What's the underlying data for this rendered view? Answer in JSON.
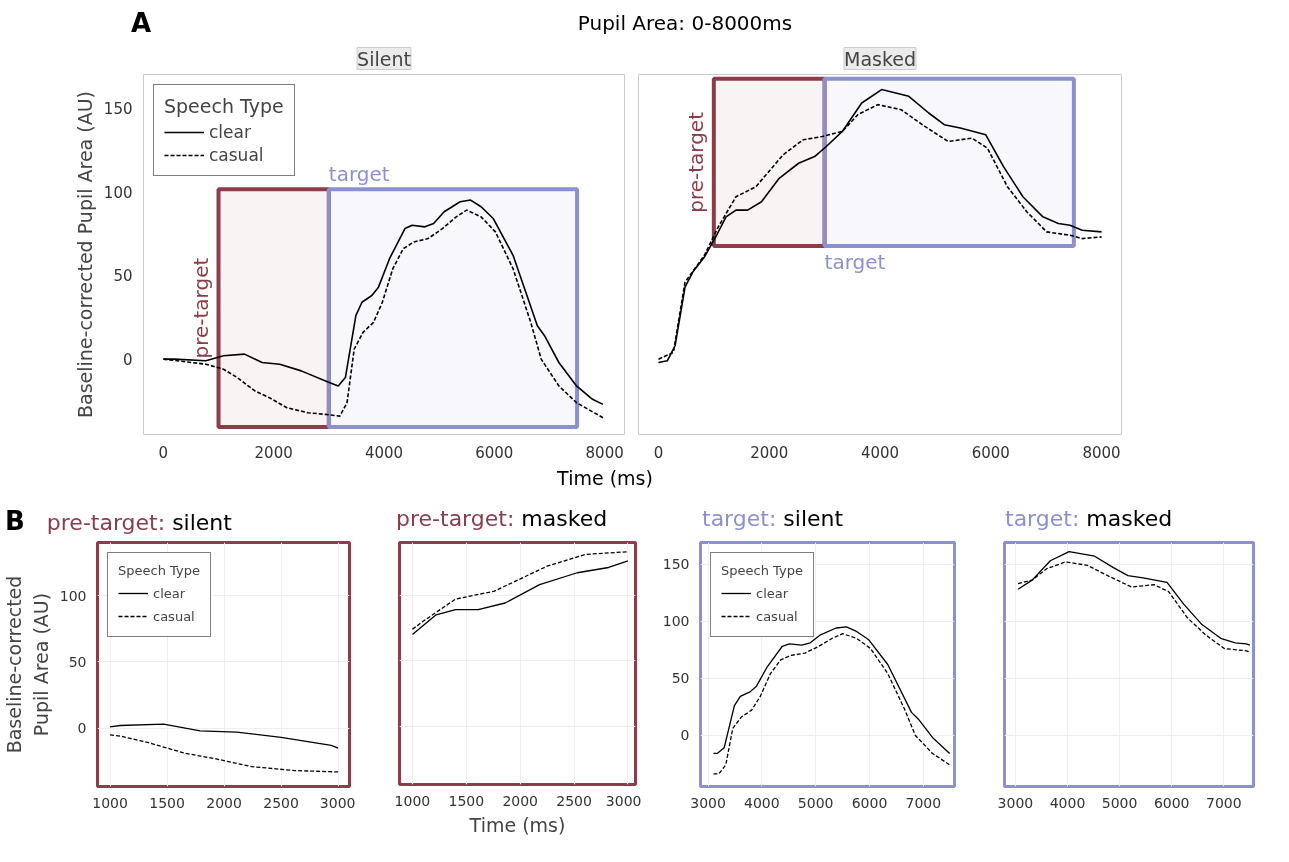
{
  "chart_data": [
    {
      "type": "line",
      "title": "Silent",
      "annotations": [
        "A",
        "Pupil Area: 0-8000ms"
      ],
      "xlabel": "Time (ms)",
      "ylabel": "Baseline-corrected Pupil Area (AU)",
      "legend_title": "Speech Type",
      "legend": "top left",
      "grid": false,
      "xlim": [
        -360,
        8360
      ],
      "ylim": [
        -45,
        170
      ],
      "xticks": [
        0,
        2000,
        4000,
        6000,
        8000
      ],
      "yticks": [
        0,
        50,
        100,
        150
      ],
      "bands": [
        {
          "axis": "x",
          "from": 1000,
          "to": 3000,
          "label": "pre-target",
          "color": "#8b3d4a"
        },
        {
          "axis": "x",
          "from": 3000,
          "to": 7500,
          "label": "target",
          "color": "#8b90cf"
        }
      ],
      "series": [
        {
          "name": "clear",
          "color": "#000000",
          "line_style": "solid",
          "x": [
            0,
            200,
            770,
            1090,
            1470,
            1790,
            2110,
            2500,
            2940,
            3170,
            3300,
            3490,
            3600,
            3780,
            3900,
            4100,
            4380,
            4510,
            4740,
            4900,
            5090,
            5380,
            5570,
            5760,
            5980,
            6340,
            6780,
            6910,
            7170,
            7490,
            7780,
            7970
          ],
          "values": [
            0,
            0,
            -1,
            2,
            3,
            -2,
            -3,
            -7,
            -13,
            -16,
            -11,
            26,
            34,
            38,
            43,
            60,
            78,
            80,
            79,
            81,
            88,
            94,
            95,
            91,
            84,
            62,
            20,
            14,
            -2,
            -16,
            -24,
            -27
          ]
        },
        {
          "name": "casual",
          "color": "#000000",
          "line_style": "dashed",
          "x": [
            0,
            770,
            1090,
            1340,
            1660,
            1920,
            2240,
            2620,
            2940,
            3200,
            3330,
            3460,
            3620,
            3810,
            3970,
            4160,
            4350,
            4540,
            4800,
            5060,
            5310,
            5500,
            5760,
            6020,
            6340,
            6660,
            6850,
            7170,
            7490,
            7970
          ],
          "values": [
            0,
            -3,
            -6,
            -11,
            -19,
            -23,
            -29,
            -32,
            -33,
            -34,
            -26,
            6,
            16,
            22,
            34,
            54,
            66,
            70,
            72,
            78,
            85,
            89,
            85,
            76,
            54,
            22,
            0,
            -16,
            -26,
            -35
          ]
        }
      ]
    },
    {
      "type": "line",
      "title": "Masked",
      "tick_labels": "x",
      "grid": false,
      "xlim": [
        -360,
        8360
      ],
      "ylim": [
        -45,
        170
      ],
      "xticks": [
        0,
        2000,
        4000,
        6000,
        8000
      ],
      "yticks": [
        0,
        50,
        100,
        150
      ],
      "bands": [
        {
          "axis": "x",
          "from": 1000,
          "to": 3000,
          "label": "pre-target",
          "color": "#8b3d4a"
        },
        {
          "axis": "x",
          "from": 3000,
          "to": 7500,
          "label": "target",
          "color": "#8b90cf"
        }
      ],
      "series": [
        {
          "color": "#000000",
          "line_style": "solid",
          "x": [
            0,
            160,
            300,
            480,
            620,
            830,
            1050,
            1220,
            1400,
            1610,
            1860,
            2180,
            2530,
            2820,
            3030,
            3320,
            3670,
            4030,
            4520,
            4880,
            5160,
            5450,
            5910,
            6230,
            6580,
            6940,
            7220,
            7430,
            7650,
            8000
          ],
          "values": [
            -2,
            -1,
            8,
            43,
            52,
            61,
            74,
            85,
            89,
            89,
            94,
            108,
            117,
            121,
            127,
            136,
            153,
            161,
            157,
            147,
            140,
            138,
            134,
            115,
            97,
            85,
            81,
            80,
            77,
            76
          ]
        },
        {
          "color": "#000000",
          "line_style": "dashed",
          "x": [
            0,
            270,
            480,
            830,
            1080,
            1400,
            1760,
            2250,
            2610,
            2960,
            3320,
            3600,
            3960,
            4380,
            4810,
            5230,
            5660,
            5940,
            6300,
            6650,
            7010,
            7430,
            7650,
            8000
          ],
          "values": [
            0,
            4,
            46,
            62,
            79,
            97,
            103,
            122,
            131,
            133,
            136,
            146,
            152,
            149,
            139,
            130,
            132,
            126,
            103,
            88,
            76,
            74,
            72,
            73
          ]
        }
      ]
    },
    {
      "type": "line",
      "title": "pre-target: silent",
      "annotations": [
        "B"
      ],
      "ylabel": "Baseline-corrected\nPupil Area (AU)",
      "legend_title": "Speech Type",
      "legend": "top left",
      "grid": true,
      "xlim": [
        890,
        3100
      ],
      "ylim": [
        -44,
        140
      ],
      "xticks": [
        1000,
        1500,
        2000,
        2500,
        3000
      ],
      "yticks": [
        0,
        50,
        100
      ],
      "series": [
        {
          "name": "clear",
          "color": "#000000",
          "line_style": "solid",
          "x": [
            1000,
            1090,
            1470,
            1790,
            2110,
            2500,
            2940,
            3000
          ],
          "values": [
            1,
            2,
            3,
            -2,
            -3,
            -7,
            -13,
            -15
          ]
        },
        {
          "name": "casual",
          "color": "#000000",
          "line_style": "dashed",
          "x": [
            1000,
            1090,
            1340,
            1660,
            1920,
            2240,
            2620,
            3000
          ],
          "values": [
            -5,
            -6,
            -11,
            -19,
            -23,
            -29,
            -32,
            -33
          ]
        }
      ]
    },
    {
      "type": "line",
      "title": "pre-target: masked",
      "xlabel": "Time (ms)",
      "tick_labels": "x",
      "grid": true,
      "xlim": [
        880,
        3070
      ],
      "ylim": [
        -44,
        140
      ],
      "xticks": [
        1000,
        1500,
        2000,
        2500,
        3000
      ],
      "yticks": [
        0,
        50,
        100
      ],
      "series": [
        {
          "color": "#000000",
          "line_style": "solid",
          "x": [
            1000,
            1220,
            1400,
            1610,
            1860,
            2180,
            2530,
            2820,
            3000
          ],
          "values": [
            70,
            85,
            89,
            89,
            94,
            108,
            117,
            121,
            126
          ]
        },
        {
          "color": "#000000",
          "line_style": "dashed",
          "x": [
            1000,
            1080,
            1400,
            1760,
            2250,
            2610,
            3000
          ],
          "values": [
            74,
            79,
            97,
            103,
            122,
            131,
            133
          ]
        }
      ]
    },
    {
      "type": "line",
      "title": "target: silent",
      "legend_title": "Speech Type",
      "legend": "top left",
      "grid": true,
      "xlim": [
        2860,
        7580
      ],
      "ylim": [
        -45,
        169
      ],
      "xticks": [
        3000,
        4000,
        5000,
        6000,
        7000
      ],
      "yticks": [
        0,
        50,
        100,
        150
      ],
      "series": [
        {
          "name": "clear",
          "color": "#000000",
          "line_style": "solid",
          "x": [
            3100,
            3170,
            3300,
            3490,
            3600,
            3780,
            3900,
            4100,
            4380,
            4510,
            4740,
            4900,
            5090,
            5380,
            5570,
            5760,
            5980,
            6340,
            6780,
            6910,
            7170,
            7490
          ],
          "values": [
            -16,
            -16,
            -11,
            26,
            34,
            38,
            43,
            60,
            78,
            80,
            79,
            81,
            88,
            94,
            95,
            91,
            84,
            62,
            20,
            14,
            -2,
            -16
          ]
        },
        {
          "name": "casual",
          "color": "#000000",
          "line_style": "dashed",
          "x": [
            3100,
            3200,
            3330,
            3460,
            3620,
            3810,
            3970,
            4160,
            4350,
            4540,
            4800,
            5060,
            5310,
            5500,
            5760,
            6020,
            6340,
            6660,
            6850,
            7170,
            7490
          ],
          "values": [
            -34,
            -34,
            -26,
            6,
            16,
            22,
            34,
            54,
            66,
            70,
            72,
            78,
            85,
            89,
            85,
            76,
            54,
            22,
            0,
            -16,
            -26
          ]
        }
      ]
    },
    {
      "type": "line",
      "title": "target: masked",
      "tick_labels": "x",
      "grid": true,
      "xlim": [
        2790,
        7570
      ],
      "ylim": [
        -45,
        169
      ],
      "xticks": [
        3000,
        4000,
        5000,
        6000,
        7000
      ],
      "yticks": [
        0,
        50,
        100,
        150
      ],
      "series": [
        {
          "color": "#000000",
          "line_style": "solid",
          "x": [
            3050,
            3320,
            3670,
            4030,
            4520,
            4880,
            5160,
            5450,
            5910,
            6230,
            6580,
            6940,
            7220,
            7430,
            7500
          ],
          "values": [
            128,
            136,
            153,
            161,
            157,
            147,
            140,
            138,
            134,
            115,
            97,
            85,
            81,
            80,
            79
          ]
        },
        {
          "color": "#000000",
          "line_style": "dashed",
          "x": [
            3050,
            3320,
            3600,
            3960,
            4380,
            4810,
            5230,
            5660,
            5940,
            6300,
            6650,
            7010,
            7430,
            7500
          ],
          "values": [
            133,
            136,
            146,
            152,
            149,
            139,
            130,
            132,
            126,
            103,
            88,
            76,
            74,
            73
          ]
        }
      ]
    }
  ]
}
